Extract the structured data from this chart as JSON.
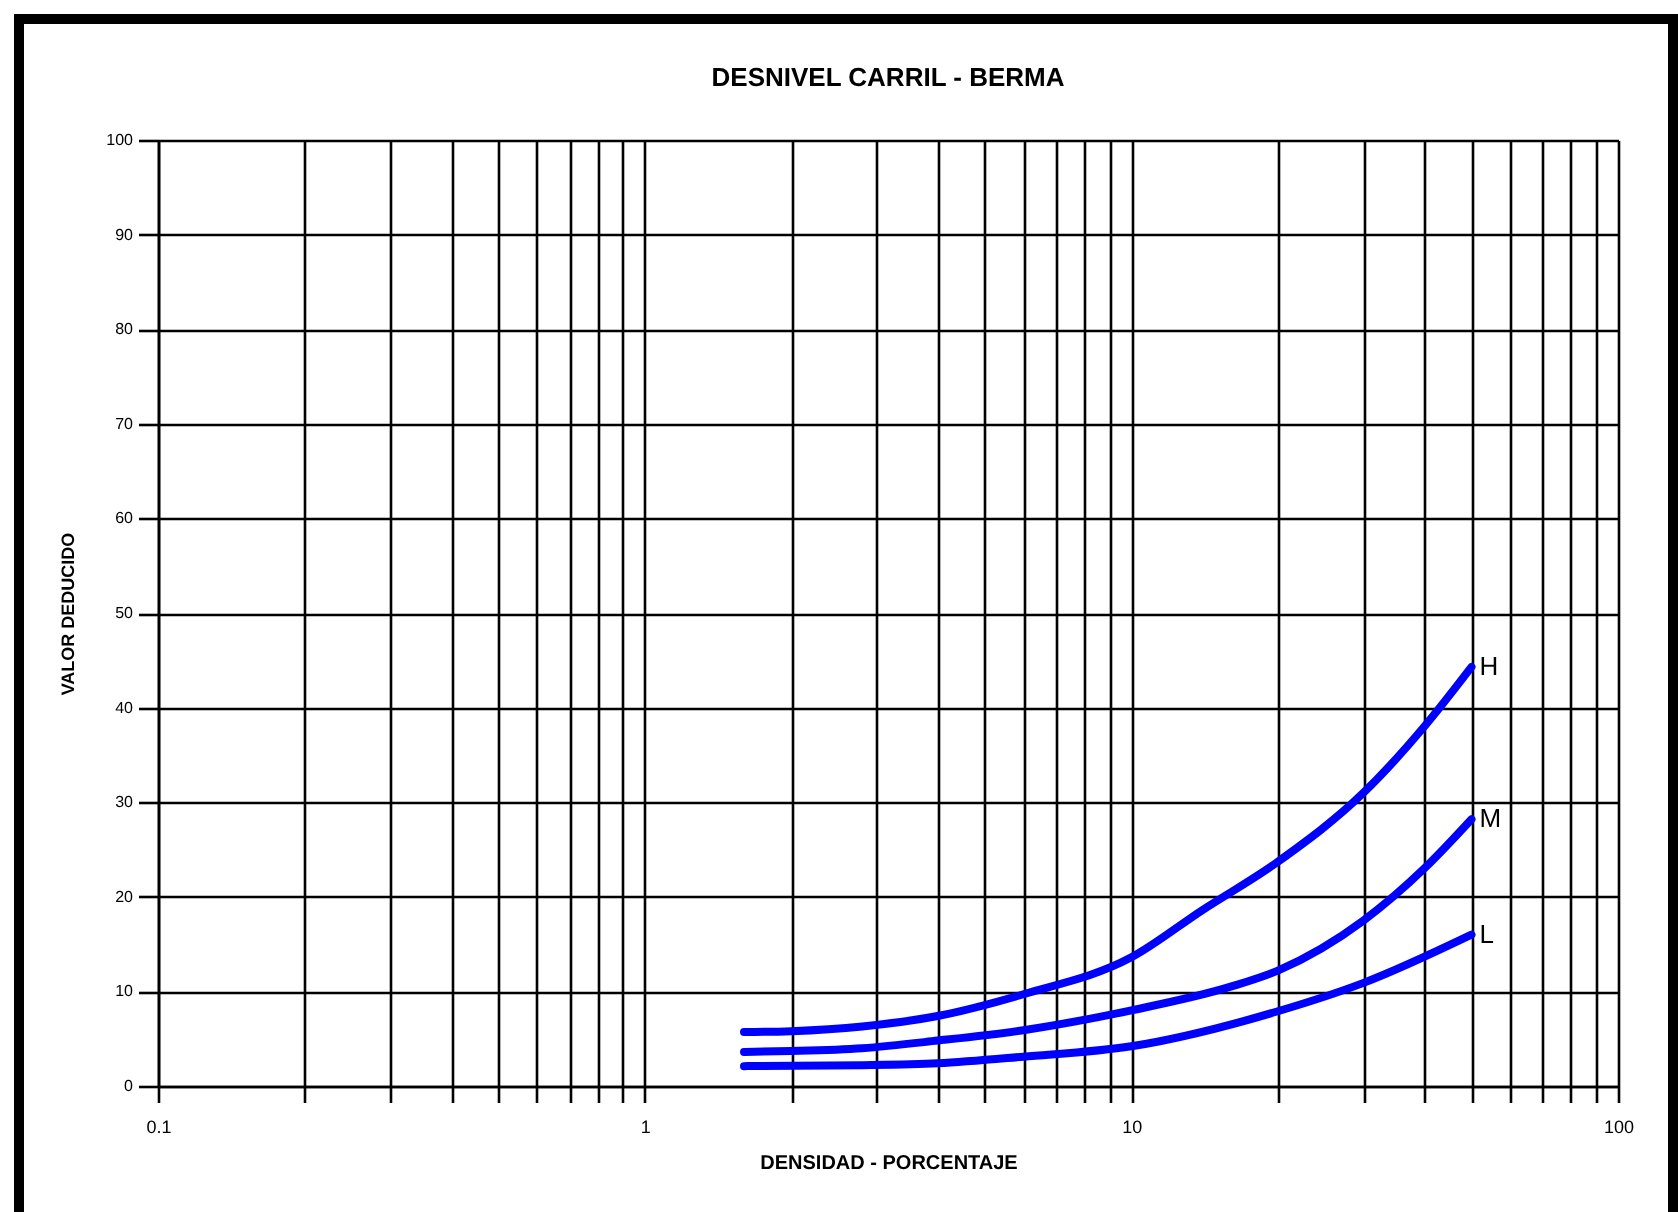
{
  "chart_data": {
    "type": "line",
    "title": "DESNIVEL CARRIL - BERMA",
    "xlabel": "DENSIDAD - PORCENTAJE",
    "ylabel": "VALOR DEDUCIDO",
    "log": "x",
    "xlim": [
      0.1,
      100
    ],
    "ylim": [
      0,
      100
    ],
    "xticks": [
      0.1,
      {
        "value": 0.2,
        "label": null
      },
      {
        "value": 0.3,
        "label": null
      },
      {
        "value": 0.4,
        "label": null
      },
      {
        "value": 0.5,
        "label": null
      },
      {
        "value": 0.6,
        "label": null
      },
      {
        "value": 0.7,
        "label": null
      },
      {
        "value": 0.8,
        "label": null
      },
      {
        "value": 0.9,
        "label": null
      },
      1,
      {
        "value": 2,
        "label": null
      },
      {
        "value": 3,
        "label": null
      },
      {
        "value": 4,
        "label": null
      },
      {
        "value": 5,
        "label": null
      },
      {
        "value": 6,
        "label": null
      },
      {
        "value": 7,
        "label": null
      },
      {
        "value": 8,
        "label": null
      },
      {
        "value": 9,
        "label": null
      },
      10,
      {
        "value": 20,
        "label": null
      },
      {
        "value": 30,
        "label": null
      },
      {
        "value": 40,
        "label": null
      },
      {
        "value": 50,
        "label": null
      },
      {
        "value": 60,
        "label": null
      },
      {
        "value": 70,
        "label": null
      },
      {
        "value": 80,
        "label": null
      },
      {
        "value": 90,
        "label": null
      },
      100
    ],
    "yticks": [
      0,
      10,
      20,
      30,
      40,
      50,
      60,
      70,
      80,
      90,
      100
    ],
    "grid": true,
    "series": [
      {
        "name": "H",
        "color": "#0000ff",
        "x": [
          1.6,
          2,
          2.8,
          4,
          6,
          10,
          14,
          20,
          30,
          40,
          50
        ],
        "values": [
          5.7,
          5.8,
          6.3,
          7.4,
          9.7,
          13.6,
          18.6,
          23.7,
          31,
          38,
          44.3
        ]
      },
      {
        "name": "M",
        "color": "#0000ff",
        "x": [
          1.6,
          2,
          2.8,
          4,
          6,
          10,
          16,
          20,
          30,
          40,
          50
        ],
        "values": [
          3.6,
          3.7,
          4,
          4.8,
          5.9,
          8,
          10.5,
          12.2,
          17.5,
          23,
          28.2
        ]
      },
      {
        "name": "L",
        "color": "#0000ff",
        "x": [
          1.6,
          2.8,
          4,
          6,
          10,
          20,
          30,
          50
        ],
        "values": [
          2.1,
          2.2,
          2.4,
          3.1,
          4.2,
          7.9,
          10.9,
          16
        ]
      }
    ]
  }
}
